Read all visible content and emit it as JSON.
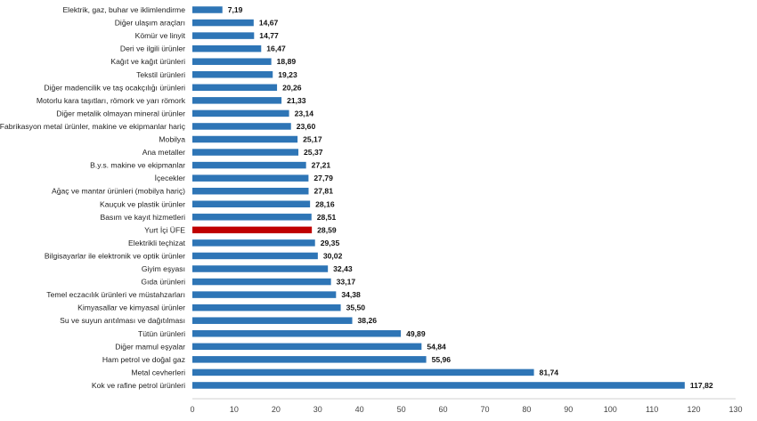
{
  "chart_data": {
    "type": "bar",
    "orientation": "horizontal",
    "xlim": [
      0,
      130
    ],
    "xticks": [
      0,
      10,
      20,
      30,
      40,
      50,
      60,
      70,
      80,
      90,
      100,
      110,
      120,
      130
    ],
    "grid": false,
    "colors": {
      "default": "#2e75b6",
      "highlight": "#c00000"
    },
    "highlight": "Yurt İçi ÜFE",
    "categories": [
      "Elektrik, gaz, buhar ve iklimlendirme",
      "Diğer ulaşım araçları",
      "Kömür ve linyit",
      "Deri ve ilgili ürünler",
      "Kağıt ve kağıt ürünleri",
      "Tekstil ürünleri",
      "Diğer madencilik ve taş ocakçılığı ürünleri",
      "Motorlu kara taşıtları, römork ve yarı römork",
      "Diğer metalik olmayan mineral ürünler",
      "Fabrikasyon metal ürünler, makine ve ekipmanlar hariç",
      "Mobilya",
      "Ana metaller",
      "B.y.s. makine ve ekipmanlar",
      "İçecekler",
      "Ağaç ve mantar ürünleri (mobilya hariç)",
      "Kauçuk ve plastik ürünler",
      "Basım ve kayıt hizmetleri",
      "Yurt İçi ÜFE",
      "Elektrikli teçhizat",
      "Bilgisayarlar ile elektronik ve optik ürünler",
      "Giyim eşyası",
      "Gıda ürünleri",
      "Temel eczacılık ürünleri ve müstahzarları",
      "Kimyasallar ve kimyasal ürünler",
      "Su ve suyun arıtılması ve dağıtılması",
      "Tütün ürünleri",
      "Diğer mamul eşyalar",
      "Ham petrol ve doğal gaz",
      "Metal cevherleri",
      "Kok ve rafine petrol ürünleri"
    ],
    "values": [
      7.19,
      14.67,
      14.77,
      16.47,
      18.89,
      19.23,
      20.26,
      21.33,
      23.14,
      23.6,
      25.17,
      25.37,
      27.21,
      27.79,
      27.81,
      28.16,
      28.51,
      28.59,
      29.35,
      30.02,
      32.43,
      33.17,
      34.38,
      35.5,
      38.26,
      49.89,
      54.84,
      55.96,
      81.74,
      117.82
    ],
    "value_labels": [
      "7,19",
      "14,67",
      "14,77",
      "16,47",
      "18,89",
      "19,23",
      "20,26",
      "21,33",
      "23,14",
      "23,60",
      "25,17",
      "25,37",
      "27,21",
      "27,79",
      "27,81",
      "28,16",
      "28,51",
      "28,59",
      "29,35",
      "30,02",
      "32,43",
      "33,17",
      "34,38",
      "35,50",
      "38,26",
      "49,89",
      "54,84",
      "55,96",
      "81,74",
      "117,82"
    ]
  }
}
